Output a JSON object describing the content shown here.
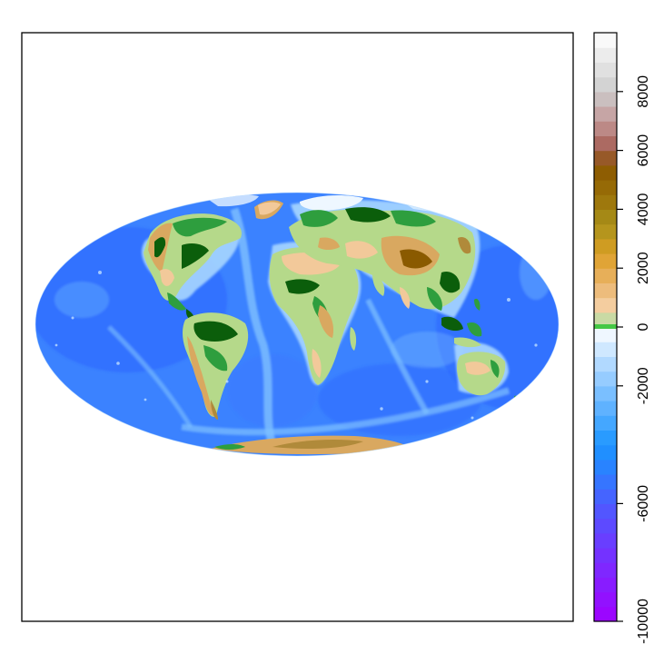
{
  "map": {
    "projection": "mollweide",
    "ocean_colors": [
      "#2f6bff",
      "#3a86ff",
      "#5aa7ff",
      "#8cc8ff",
      "#c8e6ff"
    ],
    "land_colors": [
      "#2e9e3e",
      "#0b5e0b",
      "#b5d98a",
      "#f2c99a",
      "#d9a860",
      "#b08a3a",
      "#8a5a00"
    ],
    "ice_color": "#ffffff"
  },
  "colorbar": {
    "min": -10000,
    "max": 10000,
    "zero_color": "#45c845",
    "tick_values": [
      -10000,
      -6000,
      -2000,
      0,
      2000,
      4000,
      6000,
      8000
    ],
    "tick_labels": [
      "-10000",
      "-6000",
      "-2000",
      "0",
      "2000",
      "4000",
      "6000",
      "8000"
    ],
    "negative_stops": [
      {
        "v": -10000,
        "c": "#a000ff"
      },
      {
        "v": -8000,
        "c": "#7a2cff"
      },
      {
        "v": -6000,
        "c": "#4c5cff"
      },
      {
        "v": -5000,
        "c": "#2e7dff"
      },
      {
        "v": -4000,
        "c": "#1b95ff"
      },
      {
        "v": -2500,
        "c": "#6cb8ff"
      },
      {
        "v": -1000,
        "c": "#bfe0ff"
      },
      {
        "v": 0,
        "c": "#ffffff"
      }
    ],
    "positive_stops": [
      {
        "v": 0,
        "c": "#a8e0a0"
      },
      {
        "v": 600,
        "c": "#f6d2aa"
      },
      {
        "v": 1500,
        "c": "#eab46a"
      },
      {
        "v": 2500,
        "c": "#dc9f25"
      },
      {
        "v": 3500,
        "c": "#a8911a"
      },
      {
        "v": 4500,
        "c": "#9a7008"
      },
      {
        "v": 5500,
        "c": "#8a5600"
      },
      {
        "v": 6000,
        "c": "#a45b50"
      },
      {
        "v": 7000,
        "c": "#c49898"
      },
      {
        "v": 8000,
        "c": "#cccccc"
      },
      {
        "v": 9000,
        "c": "#e6e6e6"
      },
      {
        "v": 10000,
        "c": "#ffffff"
      }
    ]
  }
}
